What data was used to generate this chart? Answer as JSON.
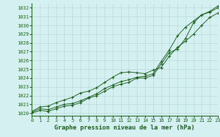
{
  "x": [
    0,
    1,
    2,
    3,
    4,
    5,
    6,
    7,
    8,
    9,
    10,
    11,
    12,
    13,
    14,
    15,
    16,
    17,
    18,
    19,
    20,
    21,
    22,
    23
  ],
  "line1": [
    1020.1,
    1020.5,
    1020.4,
    1020.7,
    1021.0,
    1021.1,
    1021.4,
    1021.8,
    1022.2,
    1022.8,
    1023.2,
    1023.6,
    1023.8,
    1024.1,
    1024.2,
    1024.5,
    1025.9,
    1027.2,
    1028.8,
    1029.8,
    1030.5,
    1031.2,
    1031.6,
    1032.2
  ],
  "line2": [
    1020.2,
    1020.7,
    1020.8,
    1021.2,
    1021.5,
    1021.8,
    1022.3,
    1022.5,
    1022.9,
    1023.5,
    1024.1,
    1024.6,
    1024.7,
    1024.6,
    1024.5,
    1024.9,
    1025.2,
    1026.5,
    1027.5,
    1028.2,
    1029.0,
    1030.0,
    1030.9,
    1031.4
  ],
  "line3": [
    1020.0,
    1020.3,
    1020.2,
    1020.5,
    1020.8,
    1020.9,
    1021.2,
    1021.7,
    1022.0,
    1022.5,
    1023.0,
    1023.3,
    1023.5,
    1024.0,
    1024.0,
    1024.3,
    1025.6,
    1026.9,
    1027.3,
    1028.5,
    1030.3,
    1031.2,
    1031.5,
    1032.0
  ],
  "ylim": [
    1019.7,
    1032.5
  ],
  "xlim": [
    0,
    23
  ],
  "yticks": [
    1020,
    1021,
    1022,
    1023,
    1024,
    1025,
    1026,
    1027,
    1028,
    1029,
    1030,
    1031,
    1032
  ],
  "xticks": [
    0,
    1,
    2,
    3,
    4,
    5,
    6,
    7,
    8,
    9,
    10,
    11,
    12,
    13,
    14,
    15,
    16,
    17,
    18,
    19,
    20,
    21,
    22,
    23
  ],
  "line_color": "#1a5c1a",
  "bg_color": "#d4f0f0",
  "grid_color": "#b8dada",
  "xlabel": "Graphe pression niveau de la mer (hPa)",
  "xlabel_fontsize": 6.5,
  "tick_fontsize": 5.0,
  "marker": "+",
  "markersize": 3.5,
  "linewidth": 0.7
}
